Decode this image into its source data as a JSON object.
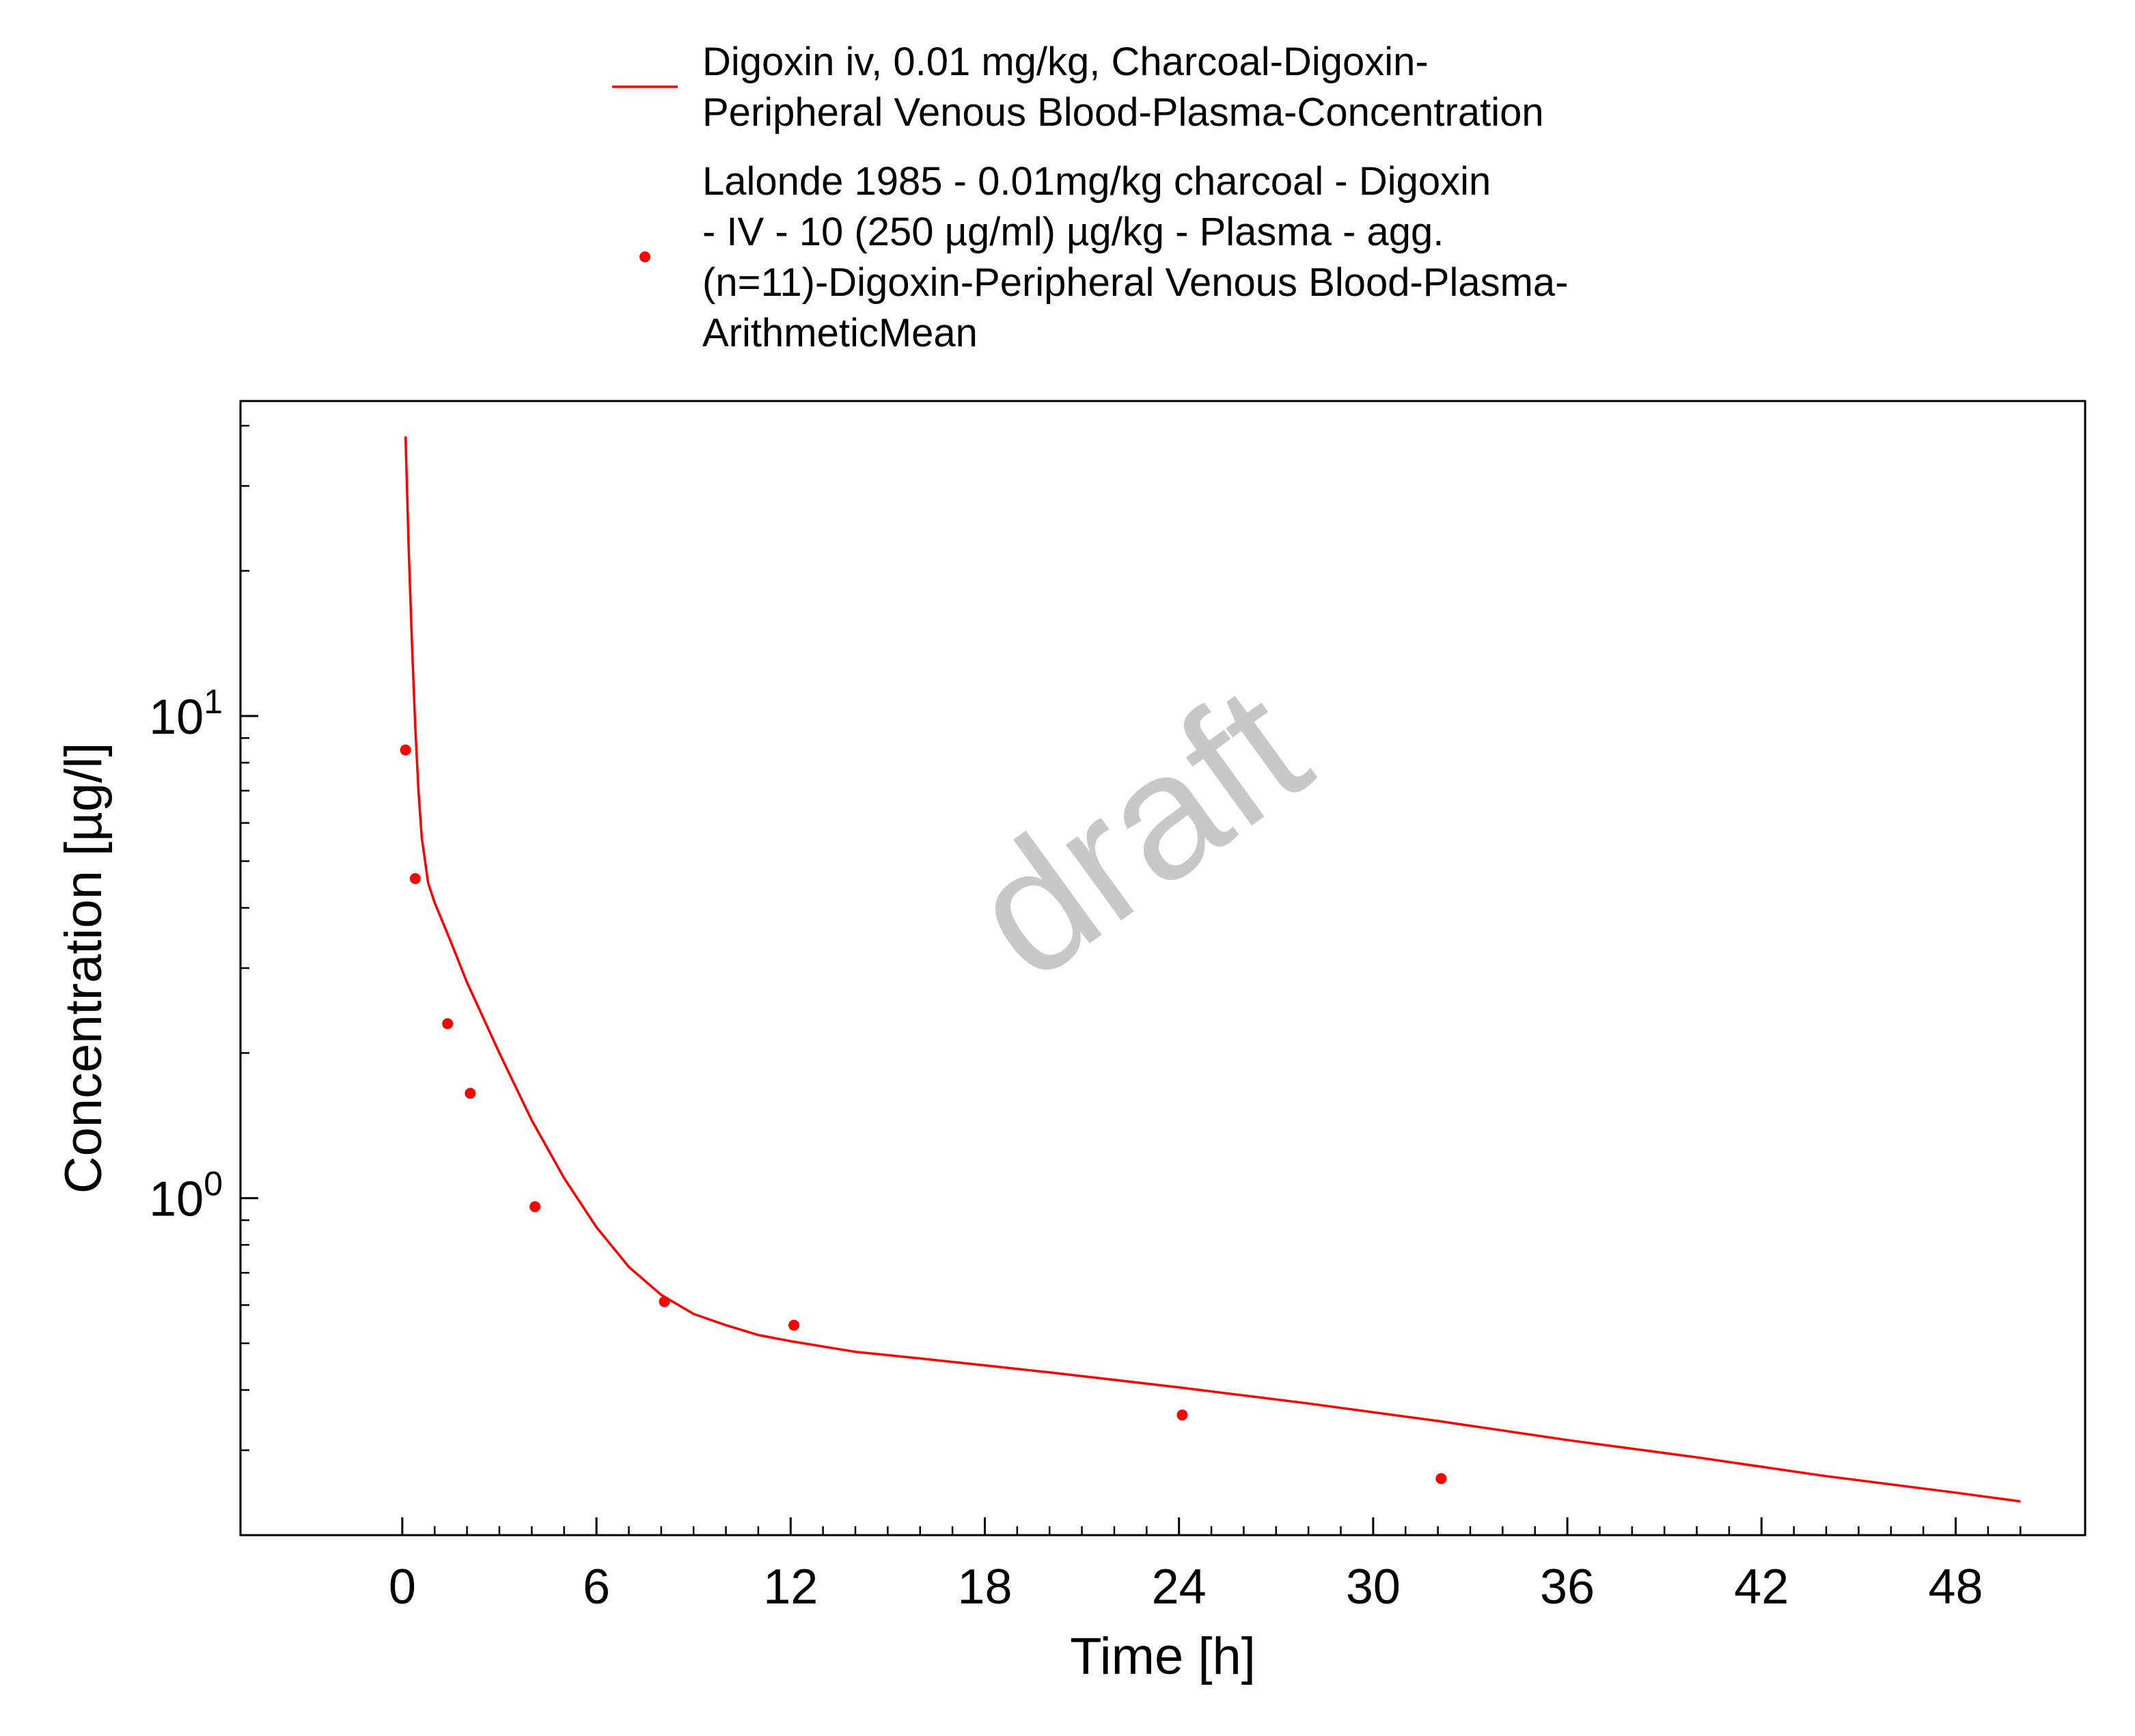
{
  "chart_data": {
    "type": "line",
    "xlabel": "Time [h]",
    "ylabel": "Concentration [µg/l]",
    "xlim": [
      -5,
      52
    ],
    "ylim": [
      0.2,
      45
    ],
    "y_scale": "log",
    "grid": false,
    "legend_position": "top",
    "x_ticks": [
      {
        "value": 0,
        "label": "0"
      },
      {
        "value": 6,
        "label": "6"
      },
      {
        "value": 12,
        "label": "12"
      },
      {
        "value": 18,
        "label": "18"
      },
      {
        "value": 24,
        "label": "24"
      },
      {
        "value": 30,
        "label": "30"
      },
      {
        "value": 36,
        "label": "36"
      },
      {
        "value": 42,
        "label": "42"
      },
      {
        "value": 48,
        "label": "48"
      }
    ],
    "y_ticks": [
      {
        "value": 1,
        "base": "10",
        "exponent": "0"
      },
      {
        "value": 10,
        "base": "10",
        "exponent": "1"
      }
    ],
    "series": [
      {
        "kind": "line",
        "color": "#ff0000",
        "legend_lines": [
          "Digoxin iv, 0.01 mg/kg, Charcoal-Digoxin-",
          "Peripheral Venous Blood-Plasma-Concentration"
        ],
        "x": [
          0.1,
          0.2,
          0.3,
          0.4,
          0.5,
          0.6,
          0.8,
          1.0,
          1.5,
          2,
          3,
          4,
          5,
          6,
          7,
          8,
          9,
          10,
          11,
          12,
          14,
          16,
          18,
          20,
          24,
          28,
          32,
          36,
          40,
          44,
          48,
          50
        ],
        "y": [
          38,
          22,
          14,
          9.5,
          7.0,
          5.6,
          4.5,
          4.1,
          3.4,
          2.8,
          2.0,
          1.45,
          1.1,
          0.87,
          0.72,
          0.63,
          0.575,
          0.545,
          0.52,
          0.505,
          0.48,
          0.465,
          0.45,
          0.435,
          0.405,
          0.375,
          0.345,
          0.315,
          0.29,
          0.265,
          0.245,
          0.235
        ]
      },
      {
        "kind": "scatter",
        "color": "#ff0000",
        "legend_lines": [
          "Lalonde 1985 - 0.01mg/kg charcoal - Digoxin",
          "- IV - 10 (250 µg/ml) µg/kg - Plasma - agg.",
          "(n=11)-Digoxin-Peripheral Venous Blood-Plasma-",
          "ArithmeticMean"
        ],
        "x": [
          0.1,
          0.4,
          1.4,
          2.1,
          4.1,
          8.1,
          12.1,
          24.1,
          32.1
        ],
        "y": [
          8.5,
          4.6,
          2.3,
          1.65,
          0.96,
          0.61,
          0.545,
          0.355,
          0.262
        ]
      }
    ]
  },
  "watermark": "draft",
  "colors": {
    "series": "#ff0000",
    "axis": "#000000",
    "watermark": "#c8c8c8"
  }
}
